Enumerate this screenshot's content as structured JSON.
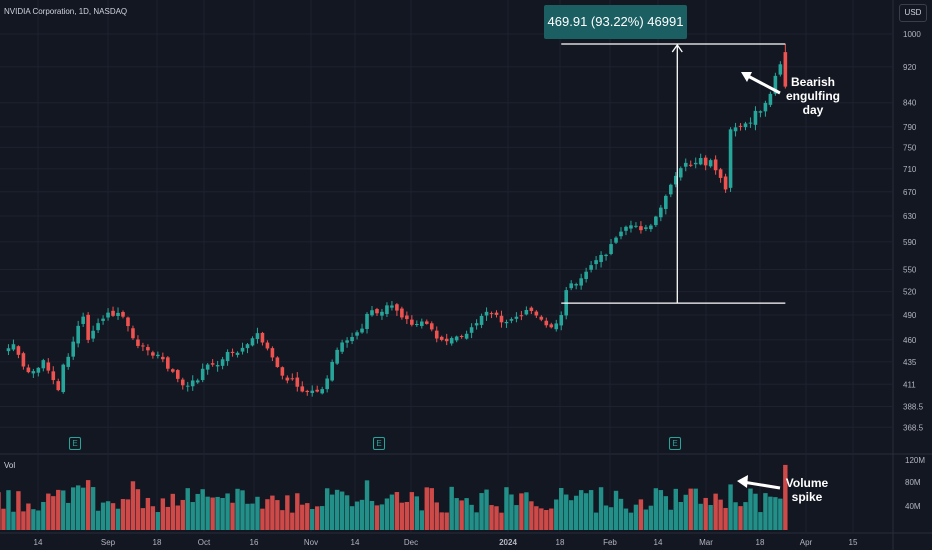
{
  "header": {
    "symbol": "NVIDIA Corporation, 1D, NASDAQ",
    "currency": "USD"
  },
  "volume_pane": {
    "label": "Vol"
  },
  "measure": {
    "text": "469.91 (93.22%) 46991"
  },
  "annotations": {
    "bearish": [
      "Bearish",
      "engulfing",
      "day"
    ],
    "volume": [
      "Volume",
      "spike"
    ]
  },
  "earnings_marker": "E",
  "colors": {
    "up": "#26a69a",
    "down": "#ef5350",
    "background": "#131722",
    "grid": "#1e2230",
    "measure_box": "#1b5f63"
  },
  "chart_data": [
    {
      "type": "candlestick",
      "title": "NVIDIA Corporation, 1D, NASDAQ",
      "yscale": "log",
      "ylim": [
        355,
        1000
      ],
      "y_ticks": [
        1000,
        920,
        840,
        790,
        750,
        710,
        670,
        630,
        590,
        550,
        520,
        490,
        460,
        435,
        411,
        388.5,
        368.5
      ],
      "x_ticks": [
        "14",
        "Sep",
        "18",
        "Oct",
        "16",
        "Nov",
        "14",
        "Dec",
        "2024",
        "18",
        "Feb",
        "14",
        "Mar",
        "18",
        "Apr",
        "15"
      ],
      "anchors": [
        {
          "date": "2023-08-02",
          "close": 446
        },
        {
          "date": "2023-08-04",
          "close": 455
        },
        {
          "date": "2023-08-08",
          "close": 430
        },
        {
          "date": "2023-08-10",
          "close": 425
        },
        {
          "date": "2023-08-14",
          "close": 437
        },
        {
          "date": "2023-08-17",
          "close": 405
        },
        {
          "date": "2023-08-18",
          "close": 432
        },
        {
          "date": "2023-08-22",
          "close": 458
        },
        {
          "date": "2023-08-24",
          "close": 488
        },
        {
          "date": "2023-08-25",
          "close": 460
        },
        {
          "date": "2023-08-29",
          "close": 480
        },
        {
          "date": "2023-08-31",
          "close": 493
        },
        {
          "date": "2023-09-05",
          "close": 488
        },
        {
          "date": "2023-09-07",
          "close": 462
        },
        {
          "date": "2023-09-12",
          "close": 448
        },
        {
          "date": "2023-09-15",
          "close": 438
        },
        {
          "date": "2023-09-21",
          "close": 410
        },
        {
          "date": "2023-09-25",
          "close": 415
        },
        {
          "date": "2023-09-29",
          "close": 432
        },
        {
          "date": "2023-10-05",
          "close": 445
        },
        {
          "date": "2023-10-10",
          "close": 455
        },
        {
          "date": "2023-10-12",
          "close": 468
        },
        {
          "date": "2023-10-13",
          "close": 457
        },
        {
          "date": "2023-10-17",
          "close": 440
        },
        {
          "date": "2023-10-20",
          "close": 415
        },
        {
          "date": "2023-10-26",
          "close": 403
        },
        {
          "date": "2023-10-31",
          "close": 406
        },
        {
          "date": "2023-11-02",
          "close": 435
        },
        {
          "date": "2023-11-06",
          "close": 457
        },
        {
          "date": "2023-11-09",
          "close": 469
        },
        {
          "date": "2023-11-14",
          "close": 496
        },
        {
          "date": "2023-11-16",
          "close": 494
        },
        {
          "date": "2023-11-20",
          "close": 502
        },
        {
          "date": "2023-11-24",
          "close": 478
        },
        {
          "date": "2023-11-28",
          "close": 482
        },
        {
          "date": "2023-12-04",
          "close": 460
        },
        {
          "date": "2023-12-07",
          "close": 464
        },
        {
          "date": "2023-12-13",
          "close": 480
        },
        {
          "date": "2023-12-15",
          "close": 494
        },
        {
          "date": "2023-12-20",
          "close": 481
        },
        {
          "date": "2023-12-28",
          "close": 495
        },
        {
          "date": "2024-01-03",
          "close": 475
        },
        {
          "date": "2024-01-05",
          "close": 490
        },
        {
          "date": "2024-01-08",
          "close": 522
        },
        {
          "date": "2024-01-12",
          "close": 547
        },
        {
          "date": "2024-01-18",
          "close": 571
        },
        {
          "date": "2024-01-24",
          "close": 613
        },
        {
          "date": "2024-01-31",
          "close": 615
        },
        {
          "date": "2024-02-06",
          "close": 682
        },
        {
          "date": "2024-02-09",
          "close": 721
        },
        {
          "date": "2024-02-13",
          "close": 721
        },
        {
          "date": "2024-02-16",
          "close": 726
        },
        {
          "date": "2024-02-20",
          "close": 694
        },
        {
          "date": "2024-02-21",
          "close": 674
        },
        {
          "date": "2024-02-22",
          "close": 785
        },
        {
          "date": "2024-02-26",
          "close": 790
        },
        {
          "date": "2024-03-01",
          "close": 822
        },
        {
          "date": "2024-03-05",
          "close": 859
        },
        {
          "date": "2024-03-07",
          "close": 926
        },
        {
          "date": "2024-03-08",
          "close": 875
        }
      ],
      "volume": {
        "ylim": [
          0,
          125000000
        ],
        "y_ticks": [
          "120M",
          "80M",
          "40M"
        ],
        "range_approx": [
          20000000,
          115000000
        ],
        "spike": {
          "date": "2024-03-08",
          "value": 113000000
        }
      },
      "measure": {
        "from": {
          "date": "2024-01-05",
          "price": 505
        },
        "to": {
          "date": "2024-03-08",
          "price": 975
        },
        "change": 469.91,
        "change_pct": 93.22
      },
      "earnings_dates": [
        "2023-08-23",
        "2023-11-21",
        "2024-02-21"
      ]
    }
  ]
}
